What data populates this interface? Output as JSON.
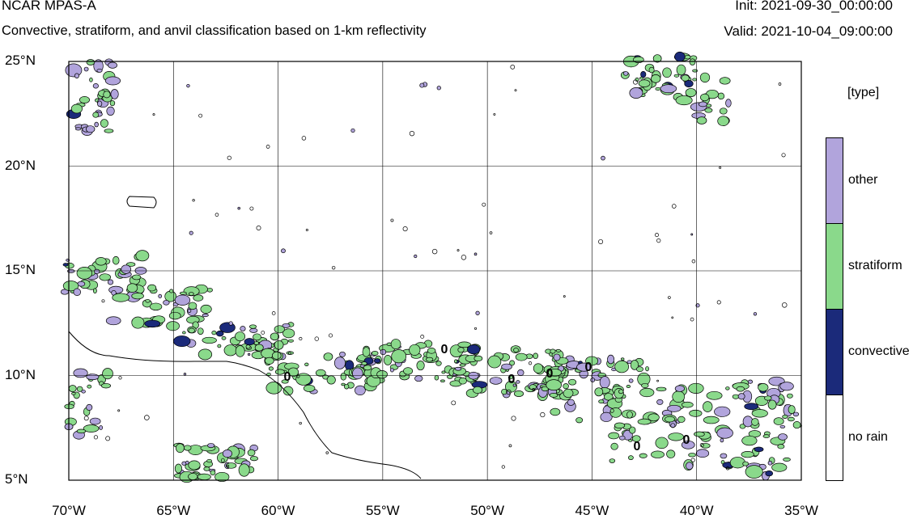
{
  "header": {
    "title": "NCAR MPAS-A",
    "subtitle": "Convective, stratiform, and anvil classification based on 1-km reflectivity",
    "init": "Init: 2021-09-30_00:00:00",
    "valid": "Valid: 2021-10-04_09:00:00"
  },
  "map": {
    "lat_ticks": [
      "25°N",
      "20°N",
      "15°N",
      "10°N",
      "5°N"
    ],
    "lon_ticks": [
      "70°W",
      "65°W",
      "60°W",
      "55°W",
      "50°W",
      "45°W",
      "40°W",
      "35°W"
    ],
    "lat_range": [
      5,
      25
    ],
    "lon_range": [
      -70,
      -35
    ],
    "contour_zero_labels": [
      "0",
      "0",
      "0",
      "0",
      "0",
      "0",
      "0"
    ]
  },
  "legend": {
    "title": "[type]",
    "items": [
      {
        "label": "other",
        "color": "#b1a4dc"
      },
      {
        "label": "stratiform",
        "color": "#8ad98b"
      },
      {
        "label": "convective",
        "color": "#1b2a7a"
      },
      {
        "label": "no rain",
        "color": "#ffffff"
      }
    ]
  },
  "colors": {
    "coast": "#000000",
    "grid": "#000000"
  }
}
